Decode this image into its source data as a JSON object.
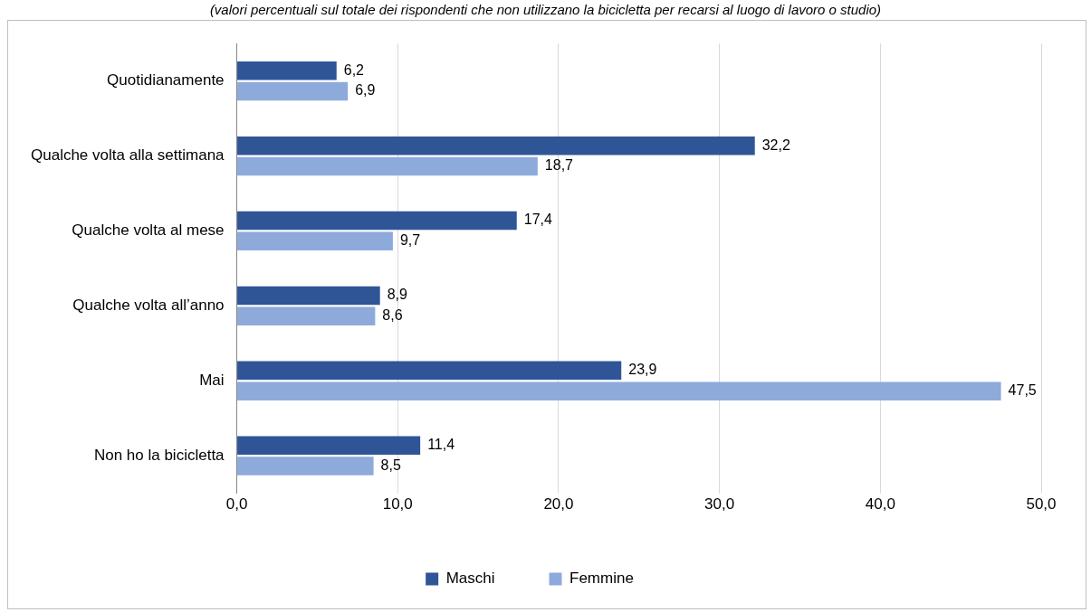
{
  "chart_data": {
    "type": "bar",
    "orientation": "horizontal",
    "subtitle": "(valori percentuali sul totale dei rispondenti che non utilizzano la bicicletta per recarsi al luogo di lavoro o studio)",
    "categories": [
      "Quotidianamente",
      "Qualche volta alla settimana",
      "Qualche volta al mese",
      "Qualche volta all’anno",
      "Mai",
      "Non ho la bicicletta"
    ],
    "series": [
      {
        "name": "Maschi",
        "color": "#2f5597",
        "values": [
          6.2,
          32.2,
          17.4,
          8.9,
          23.9,
          11.4
        ],
        "value_labels": [
          "6,2",
          "32,2",
          "17,4",
          "8,9",
          "23,9",
          "11,4"
        ]
      },
      {
        "name": "Femmine",
        "color": "#8eaadb",
        "values": [
          6.9,
          18.7,
          9.7,
          8.6,
          47.5,
          8.5
        ],
        "value_labels": [
          "6,9",
          "18,7",
          "9,7",
          "8,6",
          "47,5",
          "8,5"
        ]
      }
    ],
    "xlim": [
      0,
      50
    ],
    "xticks": [
      {
        "value": 0,
        "label": "0,0"
      },
      {
        "value": 10,
        "label": "10,0"
      },
      {
        "value": 20,
        "label": "20,0"
      },
      {
        "value": 30,
        "label": "30,0"
      },
      {
        "value": 40,
        "label": "40,0"
      },
      {
        "value": 50,
        "label": "50,0"
      }
    ],
    "grid": "x",
    "legend": "bottom"
  }
}
